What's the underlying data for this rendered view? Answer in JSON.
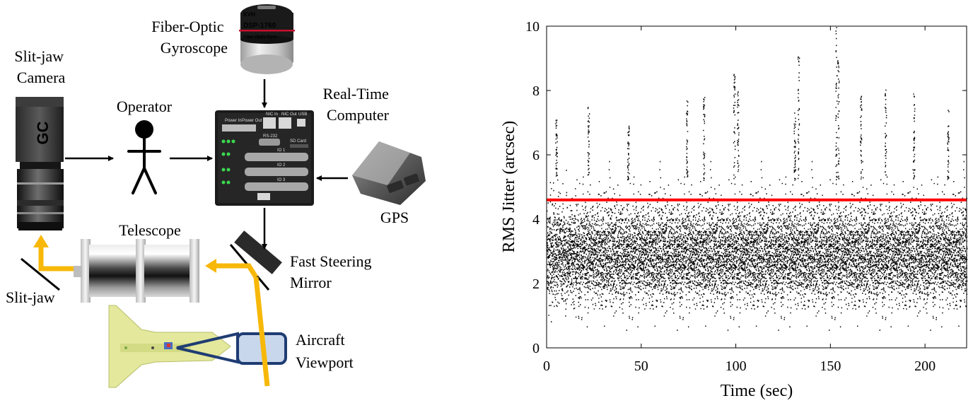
{
  "diagram": {
    "labels": {
      "fiber_optic_gyroscope": [
        "Fiber-Optic",
        "Gyroscope"
      ],
      "slit_jaw_camera": [
        "Slit-jaw",
        "Camera"
      ],
      "operator": "Operator",
      "real_time_computer": [
        "Real-Time",
        "Computer"
      ],
      "gps": "GPS",
      "telescope": "Telescope",
      "fast_steering_mirror": [
        "Fast Steering",
        "Mirror"
      ],
      "slit_jaw": "Slit-jaw",
      "aircraft_viewport": [
        "Aircraft",
        "Viewport"
      ]
    },
    "device_text": {
      "gyro_brand": "KVH",
      "gyro_model": "DSP-1760",
      "gyro_caption": "Fiber Optic Gyro",
      "camera_brand": "GC",
      "computer_ports": [
        "Power In",
        "Power Out",
        "NIC In",
        "NIC Out",
        "USB",
        "RS-232",
        "SD Card",
        "IO 1",
        "IO 2",
        "IO 3"
      ]
    },
    "colors": {
      "light_path": "#f7b80a",
      "viewport_fill": "#c9d7ec",
      "viewport_stroke": "#1f3c73",
      "aircraft_body": "#e3e89c"
    }
  },
  "chart_data": {
    "type": "scatter",
    "xlabel": "Time (sec)",
    "ylabel": "RMS Jitter (arcsec)",
    "xlim": [
      0,
      222
    ],
    "ylim": [
      0,
      10
    ],
    "xticks": [
      0,
      50,
      100,
      150,
      200
    ],
    "yticks": [
      0,
      2,
      4,
      6,
      8,
      10
    ],
    "marker_color": "#000000",
    "reference_line": {
      "y": 4.6,
      "color": "#ff0000"
    },
    "series": [
      {
        "description_points": "dense noise samples, roughly 12000 points, mostly between 0.5 and 5.5 arcsec",
        "x_step": 0.018,
        "typical_range": [
          0.5,
          5.5
        ],
        "spikes": [
          {
            "x": 5,
            "y": 7.1
          },
          {
            "x": 22,
            "y": 7.5
          },
          {
            "x": 43,
            "y": 6.9
          },
          {
            "x": 74,
            "y": 7.8
          },
          {
            "x": 83,
            "y": 7.8
          },
          {
            "x": 99,
            "y": 8.5
          },
          {
            "x": 101,
            "y": 8.0
          },
          {
            "x": 131,
            "y": 7.3
          },
          {
            "x": 133,
            "y": 9.1
          },
          {
            "x": 153,
            "y": 10.0
          },
          {
            "x": 154,
            "y": 9.0
          },
          {
            "x": 166,
            "y": 7.9
          },
          {
            "x": 179,
            "y": 8.4
          },
          {
            "x": 194,
            "y": 8.0
          },
          {
            "x": 212,
            "y": 7.5
          }
        ]
      }
    ]
  }
}
